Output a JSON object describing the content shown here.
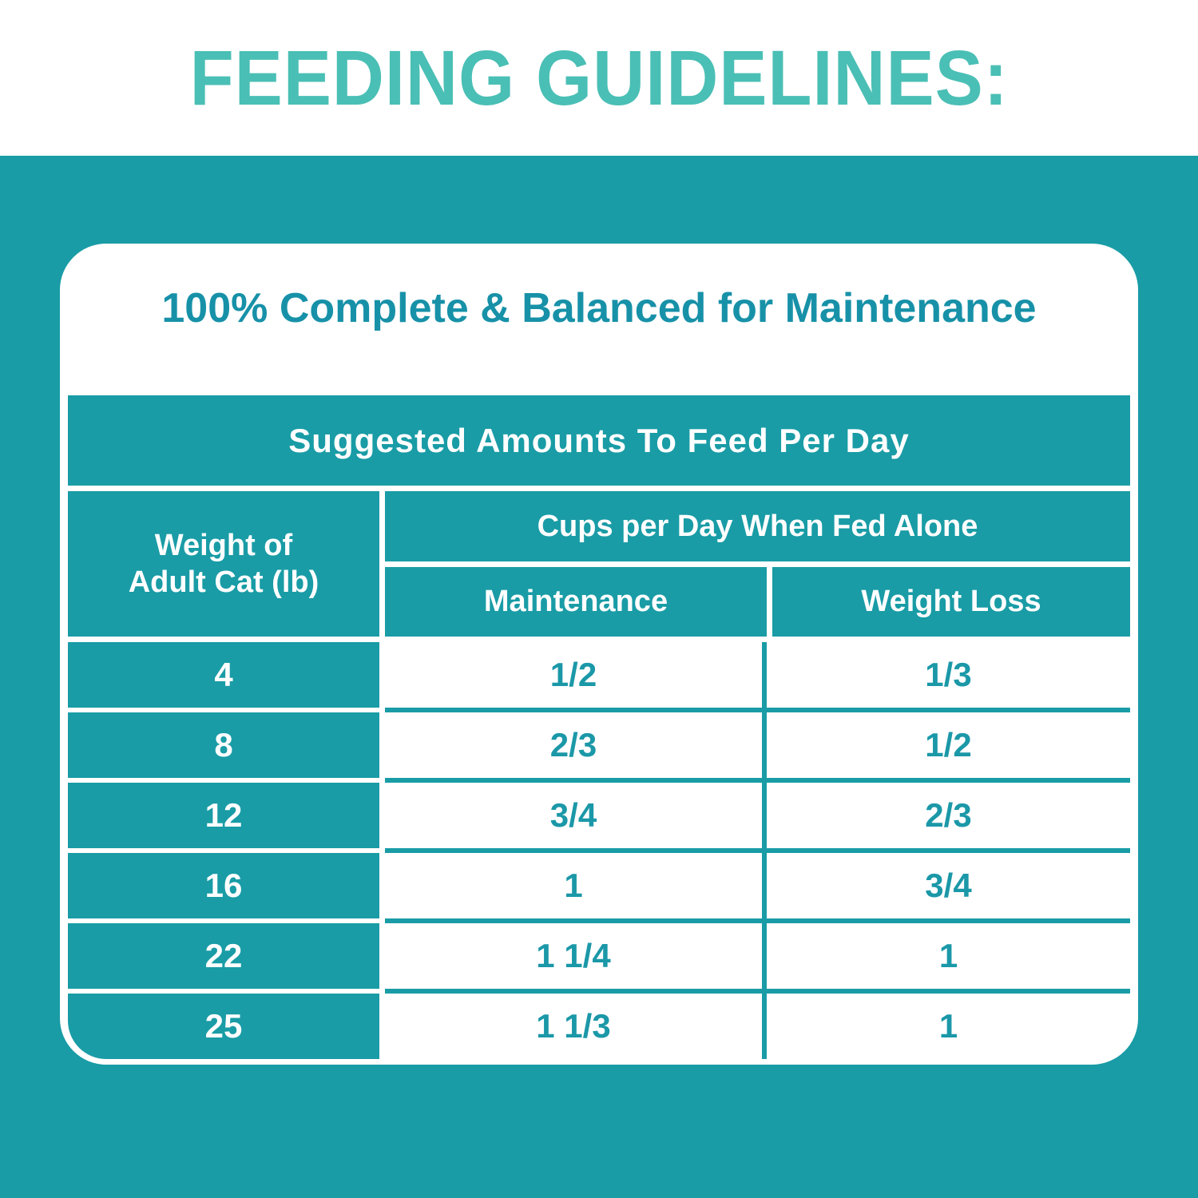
{
  "page": {
    "title": "FEEDING GUIDELINES:"
  },
  "card": {
    "heading": "100% Complete & Balanced for Maintenance"
  },
  "table": {
    "title": "Suggested Amounts To Feed Per Day",
    "weight_header_line1": "Weight of",
    "weight_header_line2": "Adult Cat (lb)",
    "group_header": "Cups per Day When Fed Alone",
    "col_maintenance": "Maintenance",
    "col_weight_loss": "Weight Loss",
    "rows": [
      {
        "weight": "4",
        "maintenance": "1/2",
        "weight_loss": "1/3"
      },
      {
        "weight": "8",
        "maintenance": "2/3",
        "weight_loss": "1/2"
      },
      {
        "weight": "12",
        "maintenance": "3/4",
        "weight_loss": "2/3"
      },
      {
        "weight": "16",
        "maintenance": "1",
        "weight_loss": "3/4"
      },
      {
        "weight": "22",
        "maintenance": "1 1/4",
        "weight_loss": "1"
      },
      {
        "weight": "25",
        "maintenance": "1 1/3",
        "weight_loss": "1"
      }
    ]
  },
  "colors": {
    "teal_background": "#199ca6",
    "title_turquoise": "#4abfb5",
    "heading_teal": "#1791a8",
    "table_value_teal": "#1b98a8",
    "white": "#ffffff"
  }
}
